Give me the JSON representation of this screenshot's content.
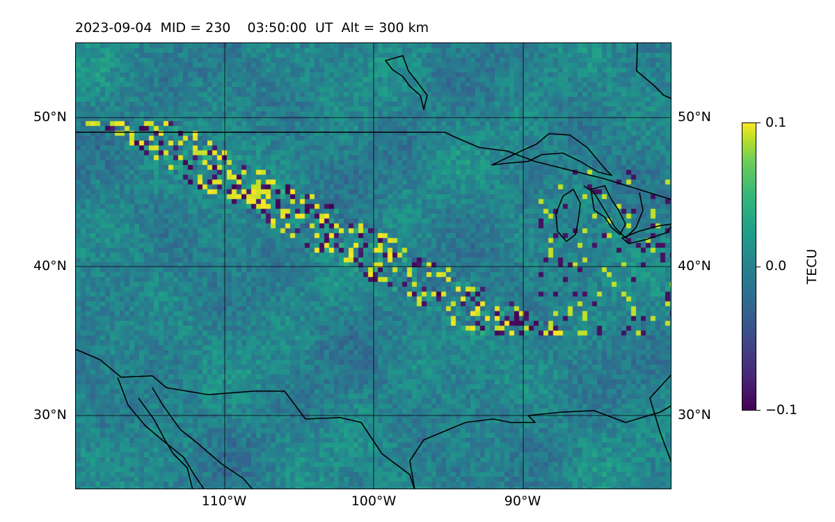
{
  "title": "2023-09-04  MID = 230    03:50:00  UT  Alt = 300 km",
  "map": {
    "type": "heatmap",
    "projection": "plate carree",
    "lon_range": [
      -120,
      -80
    ],
    "lat_range": [
      25,
      55
    ],
    "grid": true,
    "colormap": "viridis",
    "background_color": "#2a788e",
    "coastline_color": "#000000",
    "hotspot_band": "NW–SE band of strong positive/negative TEC perturbations from ~49°N 116°W to ~38°N 95°W, plus clusters near the Great Lakes"
  },
  "axes": {
    "lat_ticks": [
      {
        "value": 50,
        "label": "50°N"
      },
      {
        "value": 40,
        "label": "40°N"
      },
      {
        "value": 30,
        "label": "30°N"
      }
    ],
    "lon_ticks": [
      {
        "value": -110,
        "label": "110°W"
      },
      {
        "value": -100,
        "label": "100°W"
      },
      {
        "value": -90,
        "label": "90°W"
      }
    ]
  },
  "colorbar": {
    "label": "TECU",
    "min": -0.1,
    "max": 0.1,
    "ticks": [
      {
        "value": 0.1,
        "label": "0.1"
      },
      {
        "value": 0.0,
        "label": "0.0"
      },
      {
        "value": -0.1,
        "label": "−0.1"
      }
    ]
  }
}
